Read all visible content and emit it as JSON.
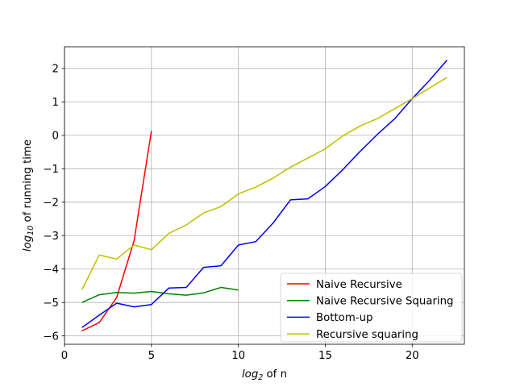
{
  "chart_data": {
    "type": "line",
    "title": "",
    "xlabel": {
      "base": "log",
      "sub": "2",
      "rest": " of n"
    },
    "ylabel": {
      "base": "log",
      "sub": "10",
      "rest": " of running time"
    },
    "xlim": [
      0,
      23
    ],
    "ylim": [
      -6.25,
      2.65
    ],
    "xticks": [
      0,
      5,
      10,
      15,
      20
    ],
    "yticks": [
      -6,
      -5,
      -4,
      -3,
      -2,
      -1,
      0,
      1,
      2
    ],
    "xtick_labels": [
      "0",
      "5",
      "10",
      "15",
      "20"
    ],
    "ytick_labels": [
      "−6",
      "−5",
      "−4",
      "−3",
      "−2",
      "−1",
      "0",
      "1",
      "2"
    ],
    "grid": true,
    "legend_position": "lower-right",
    "series": [
      {
        "name": "Naive Recursive",
        "color": "#ff0000",
        "x": [
          1,
          2,
          3,
          4,
          5
        ],
        "y": [
          -5.85,
          -5.6,
          -4.85,
          -3.15,
          0.13
        ]
      },
      {
        "name": "Naive Recursive Squaring",
        "color": "#008000",
        "x": [
          1,
          2,
          3,
          4,
          5,
          6,
          7,
          8,
          9,
          10
        ],
        "y": [
          -5.0,
          -4.77,
          -4.7,
          -4.72,
          -4.67,
          -4.74,
          -4.78,
          -4.71,
          -4.55,
          -4.63
        ]
      },
      {
        "name": "Bottom-up",
        "color": "#0000ff",
        "x": [
          1,
          2,
          3,
          4,
          5,
          6,
          7,
          8,
          9,
          10,
          11,
          12,
          13,
          14,
          15,
          16,
          17,
          18,
          19,
          20,
          21,
          22
        ],
        "y": [
          -5.75,
          -5.38,
          -5.02,
          -5.13,
          -5.06,
          -4.57,
          -4.55,
          -3.95,
          -3.9,
          -3.28,
          -3.18,
          -2.62,
          -1.93,
          -1.9,
          -1.53,
          -1.03,
          -0.48,
          0.03,
          0.5,
          1.1,
          1.65,
          2.25
        ]
      },
      {
        "name": "Recursive squaring",
        "color": "#bfbf00",
        "x": [
          1,
          2,
          3,
          4,
          5,
          6,
          7,
          8,
          9,
          10,
          11,
          12,
          13,
          14,
          15,
          16,
          17,
          18,
          19,
          20,
          21,
          22
        ],
        "y": [
          -4.62,
          -3.58,
          -3.7,
          -3.28,
          -3.42,
          -2.93,
          -2.68,
          -2.32,
          -2.13,
          -1.75,
          -1.55,
          -1.28,
          -0.95,
          -0.68,
          -0.4,
          -0.02,
          0.28,
          0.5,
          0.8,
          1.1,
          1.42,
          1.73
        ]
      }
    ]
  }
}
